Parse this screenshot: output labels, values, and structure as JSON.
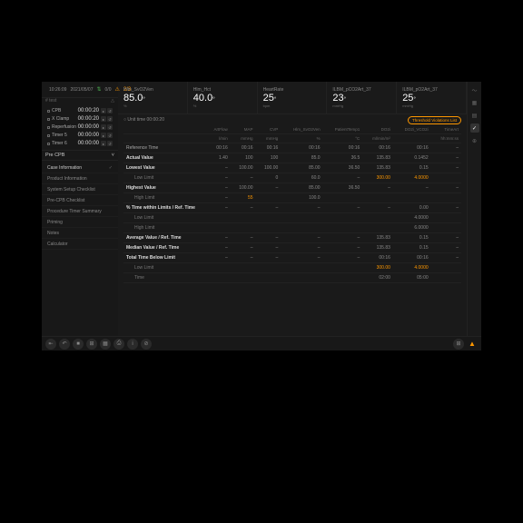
{
  "colors": {
    "bg": "#1a1a1a",
    "panel": "#181818",
    "border": "#222",
    "text": "#aaa",
    "muted": "#666",
    "white": "#fff",
    "orange": "#ff9800",
    "yellow": "#ffeb3b",
    "green": "#4caf50"
  },
  "topbar": {
    "time": "10:26:09",
    "date": "2021/05/07",
    "conn": "0/0",
    "alarm": "2/3"
  },
  "session": {
    "label": "# test",
    "icon": "△"
  },
  "timers": [
    {
      "n": "CPB",
      "v": "00:00:20"
    },
    {
      "n": "X Clamp",
      "v": "00:00:20"
    },
    {
      "n": "Reperfusion",
      "v": "00:00:00"
    },
    {
      "n": "Timer 5",
      "v": "00:00:00"
    },
    {
      "n": "Timer 6",
      "v": "00:00:00"
    }
  ],
  "phase": {
    "label": "Pre CPB",
    "chev": "˅"
  },
  "menu": [
    {
      "t": "Case Information",
      "a": true,
      "c": true
    },
    {
      "t": "Product Information"
    },
    {
      "t": "System Setup Checklist"
    },
    {
      "t": "Pre-CPB Checklist"
    },
    {
      "t": "Procedure Timer Summary"
    },
    {
      "t": "Priming"
    },
    {
      "t": "Notes"
    },
    {
      "t": "Calculator"
    }
  ],
  "vitals": [
    {
      "l": "Hlm_SvO2Ven",
      "v": "85.0",
      "u": "%"
    },
    {
      "l": "Hlm_Hct",
      "v": "40.0",
      "u": "%"
    },
    {
      "l": "HeartRate",
      "v": "25",
      "u": "bpm"
    },
    {
      "l": "ILBM_pCO2Art_37",
      "v": "23",
      "u": "mmHg"
    },
    {
      "l": "ILBM_pO2Art_37",
      "v": "25",
      "u": "mmHg"
    }
  ],
  "subhdr": {
    "left": "○ Unit time  00:00:20",
    "btn": "Threshold Violations List"
  },
  "cols": [
    "",
    "ArtFlow",
    "MAP",
    "CVP",
    "Hlm_SvO2Ven",
    "PatientTemp1",
    "DO2i",
    "DO2i_VCO2i",
    "TimeArt"
  ],
  "units": [
    "",
    "l/min",
    "mmHg",
    "mmHg",
    "%",
    "°C",
    "ml/min/m²",
    "",
    "hh:mm:ss"
  ],
  "h2": [
    "Reference Time",
    "00:16",
    "00:16",
    "00:16",
    "00:16",
    "00:16",
    "00:16",
    "00:16",
    "–"
  ],
  "rows": [
    {
      "b": 1,
      "c": [
        "Actual Value",
        "1.40",
        "100",
        "100",
        "85.0",
        "36.5",
        "135.83",
        "0.1452",
        "–"
      ]
    },
    {
      "b": 1,
      "c": [
        "Lowest Value",
        "–",
        "100.00",
        "100.00",
        "85.00",
        "36.50",
        "135.83",
        "0.15",
        "–"
      ]
    },
    {
      "s": 1,
      "c": [
        "Low Limit",
        "–",
        "–",
        "0",
        "60.0",
        "–",
        "300.00",
        "4.0000",
        ""
      ],
      "hl": [
        6,
        7
      ]
    },
    {
      "b": 1,
      "c": [
        "Highest Value",
        "–",
        "100.00",
        "–",
        "85.00",
        "36.50",
        "–",
        "–",
        "–"
      ]
    },
    {
      "s": 1,
      "c": [
        "High Limit",
        "–",
        "55",
        "",
        "100.0",
        "",
        "",
        "",
        ""
      ],
      "hl": [
        2
      ]
    },
    {
      "b": 1,
      "c": [
        "% Time within Limits / Ref. Time",
        "–",
        "–",
        "–",
        "–",
        "–",
        "–",
        "0.00",
        "–"
      ]
    },
    {
      "s": 1,
      "c": [
        "Low Limit",
        "",
        "",
        "",
        "",
        "",
        "",
        "4.0000",
        ""
      ]
    },
    {
      "s": 1,
      "c": [
        "High Limit",
        "",
        "",
        "",
        "",
        "",
        "",
        "6.0000",
        ""
      ]
    },
    {
      "b": 1,
      "c": [
        "Average Value / Ref. Time",
        "–",
        "–",
        "–",
        "–",
        "–",
        "135.83",
        "0.15",
        "–"
      ]
    },
    {
      "b": 1,
      "c": [
        "Median Value / Ref. Time",
        "–",
        "–",
        "–",
        "–",
        "–",
        "135.83",
        "0.15",
        "–"
      ]
    },
    {
      "b": 1,
      "c": [
        "Total Time Below Limit",
        "–",
        "–",
        "–",
        "–",
        "–",
        "00:16",
        "00:16",
        "–"
      ]
    },
    {
      "s": 1,
      "c": [
        "Low Limit",
        "",
        "",
        "",
        "",
        "",
        "300.00",
        "4.0000",
        ""
      ],
      "hl": [
        6,
        7
      ]
    },
    {
      "s": 1,
      "c": [
        "Time",
        "",
        "",
        "",
        "",
        "",
        "02:00",
        "05:00",
        ""
      ]
    }
  ],
  "ricons": [
    "〜",
    "▦",
    "▤",
    "✓",
    "⊕"
  ],
  "ricon_sel": 3,
  "bbtns": [
    "⇤",
    "↶",
    "■",
    "⊞",
    "▦",
    "⎙",
    "i",
    "⊘"
  ],
  "footer_right": [
    "⊞",
    "▲"
  ]
}
